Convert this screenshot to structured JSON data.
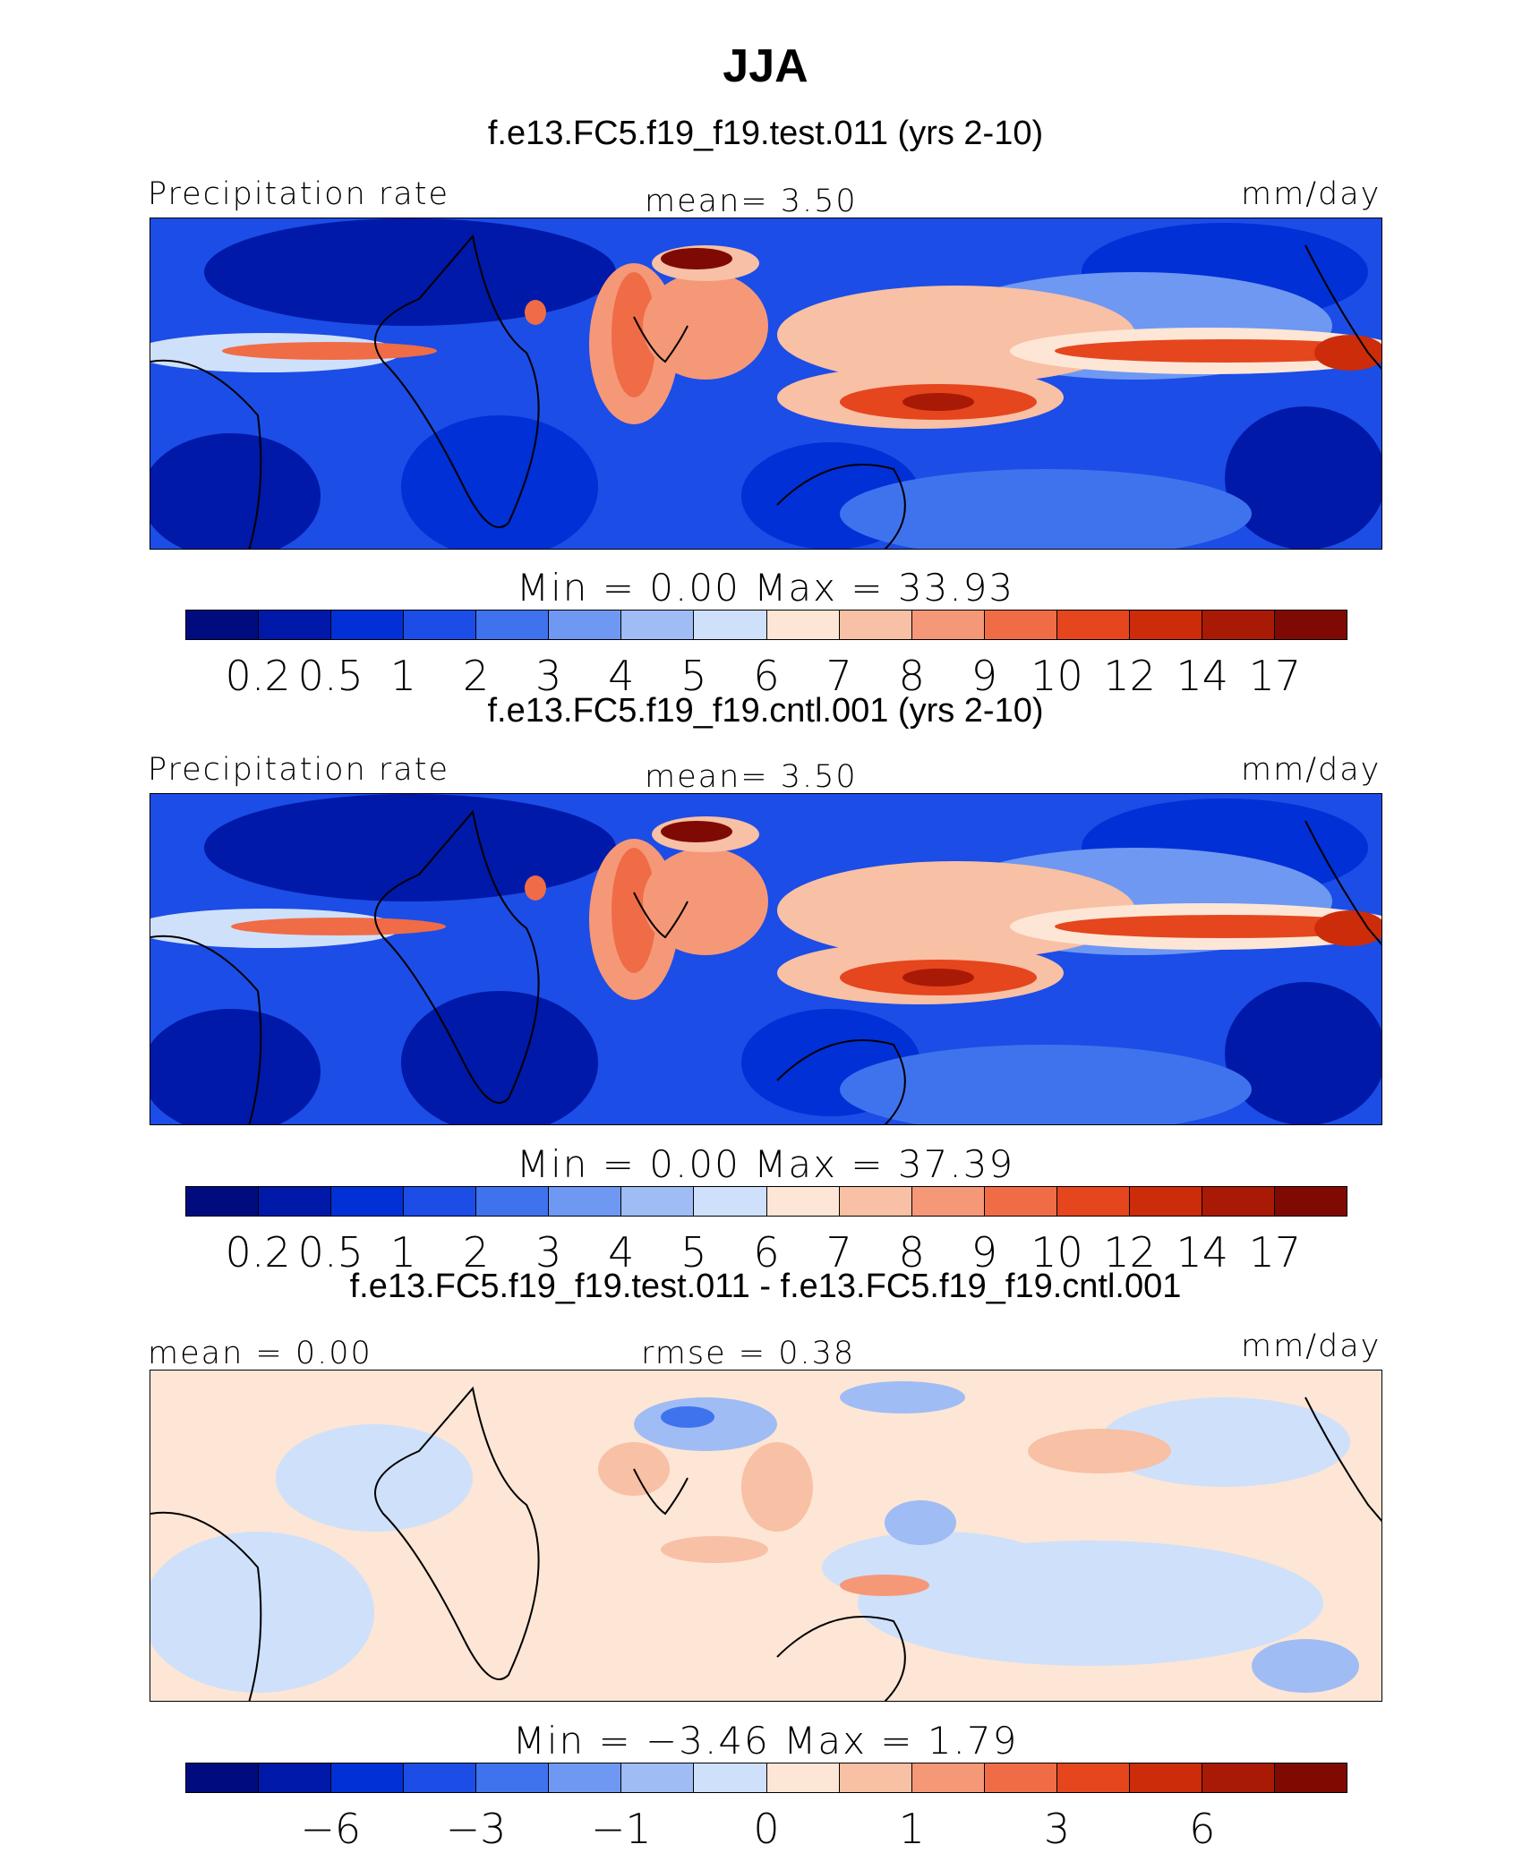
{
  "figure": {
    "title": "JJA",
    "panels": [
      {
        "case": "f.e13.FC5.f19_f19.test.011 (yrs 2-10)",
        "left_label": "Precipitation rate",
        "center_label": "mean=    3.50",
        "right_label": "mm/day",
        "minmax": "Min  =    0.00  Max  =   33.93",
        "ticks": [
          "0.2",
          "0.5",
          "1",
          "2",
          "3",
          "4",
          "5",
          "6",
          "7",
          "8",
          "9",
          "10",
          "12",
          "14",
          "17"
        ]
      },
      {
        "case": "f.e13.FC5.f19_f19.cntl.001 (yrs 2-10)",
        "left_label": "Precipitation rate",
        "center_label": "mean=    3.50",
        "right_label": "mm/day",
        "minmax": "Min  =    0.00  Max  =   37.39",
        "ticks": [
          "0.2",
          "0.5",
          "1",
          "2",
          "3",
          "4",
          "5",
          "6",
          "7",
          "8",
          "9",
          "10",
          "12",
          "14",
          "17"
        ]
      },
      {
        "case": "f.e13.FC5.f19_f19.test.011 - f.e13.FC5.f19_f19.cntl.001",
        "left_label": "mean =    0.00",
        "center_label": "rmse =    0.38",
        "right_label": "mm/day",
        "minmax": "Min  =   −3.46  Max  =    1.79",
        "ticks": [
          "−6",
          "−3",
          "−1",
          "0",
          "1",
          "3",
          "6"
        ]
      }
    ],
    "colors": {
      "precip_scale": [
        "#000c7d",
        "#0019a8",
        "#0030d6",
        "#1c4de6",
        "#3f73ee",
        "#6e98f2",
        "#9fbcf5",
        "#cfe0fa",
        "#fde6d5",
        "#f8c0a4",
        "#f59878",
        "#ef6c47",
        "#e5461e",
        "#cc2c0a",
        "#a81a06",
        "#7f0a03"
      ],
      "diff_scale": [
        "#000c7d",
        "#0019a8",
        "#0030d6",
        "#1c4de6",
        "#3f73ee",
        "#6e98f2",
        "#9fbcf5",
        "#cfe0fa",
        "#fde6d5",
        "#f8c0a4",
        "#f59878",
        "#ef6c47",
        "#e5461e",
        "#cc2c0a",
        "#a81a06",
        "#7f0a03"
      ]
    }
  }
}
